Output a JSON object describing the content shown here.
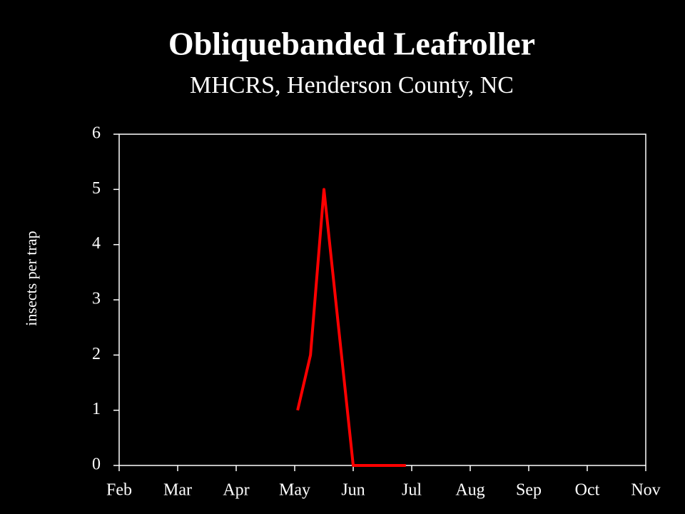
{
  "chart_data": {
    "type": "line",
    "title": "Obliquebanded Leafroller",
    "subtitle": "MHCRS, Henderson County, NC",
    "y_label": "insects per trap",
    "x": [
      3.05,
      3.27,
      3.5,
      4.0,
      4.9
    ],
    "series": [
      {
        "name": "insects per trap",
        "color": "#ff0000",
        "values": [
          1,
          2,
          5,
          0,
          0
        ]
      }
    ],
    "xlim": [
      0,
      9
    ],
    "xticks": [
      {
        "value": 0,
        "label": "Feb"
      },
      {
        "value": 1,
        "label": "Mar"
      },
      {
        "value": 2,
        "label": "Apr"
      },
      {
        "value": 3,
        "label": "May"
      },
      {
        "value": 4,
        "label": "Jun"
      },
      {
        "value": 5,
        "label": "Jul"
      },
      {
        "value": 6,
        "label": "Aug"
      },
      {
        "value": 7,
        "label": "Sep"
      },
      {
        "value": 8,
        "label": "Oct"
      },
      {
        "value": 9,
        "label": "Nov"
      }
    ],
    "ylim": [
      0,
      6
    ],
    "yticks": [
      0,
      1,
      2,
      3,
      4,
      5,
      6
    ]
  }
}
